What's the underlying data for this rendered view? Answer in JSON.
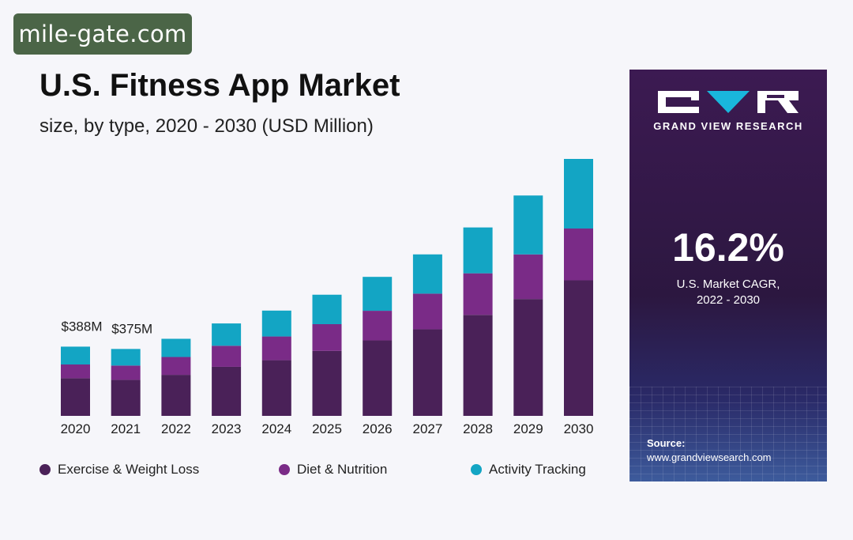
{
  "watermark": "mile-gate.com",
  "title": "U.S. Fitness App Market",
  "subtitle": "size, by type, 2020 - 2030 (USD Million)",
  "chart_data": {
    "type": "bar",
    "stacked": true,
    "categories": [
      "2020",
      "2021",
      "2022",
      "2023",
      "2024",
      "2025",
      "2026",
      "2027",
      "2028",
      "2029",
      "2030"
    ],
    "series": [
      {
        "name": "Exercise & Weight Loss",
        "color": "#4a2158",
        "values": [
          211,
          202,
          230,
          275,
          312,
          364,
          423,
          485,
          566,
          655,
          760
        ]
      },
      {
        "name": "Diet & Nutrition",
        "color": "#7a2b87",
        "values": [
          77,
          80,
          100,
          118,
          133,
          150,
          166,
          200,
          233,
          250,
          290
        ]
      },
      {
        "name": "Activity Tracking",
        "color": "#13a5c4",
        "values": [
          100,
          93,
          102,
          125,
          145,
          165,
          190,
          220,
          257,
          330,
          390
        ]
      }
    ],
    "data_labels": [
      {
        "category": "2020",
        "text": "$388M"
      },
      {
        "category": "2021",
        "text": "$375M"
      }
    ],
    "ylim": [
      0,
      1440
    ],
    "grid": false,
    "legend": "bottom"
  },
  "legend": [
    {
      "label": "Exercise & Weight Loss",
      "color": "#4a2158"
    },
    {
      "label": "Diet & Nutrition",
      "color": "#7a2b87"
    },
    {
      "label": "Activity Tracking",
      "color": "#13a5c4"
    }
  ],
  "panel": {
    "brand": "GRAND VIEW RESEARCH",
    "cagr_value": "16.2%",
    "cagr_label_1": "U.S. Market CAGR,",
    "cagr_label_2": "2022 - 2030",
    "source_label": "Source:",
    "source_url": "www.grandviewsearch.com"
  }
}
